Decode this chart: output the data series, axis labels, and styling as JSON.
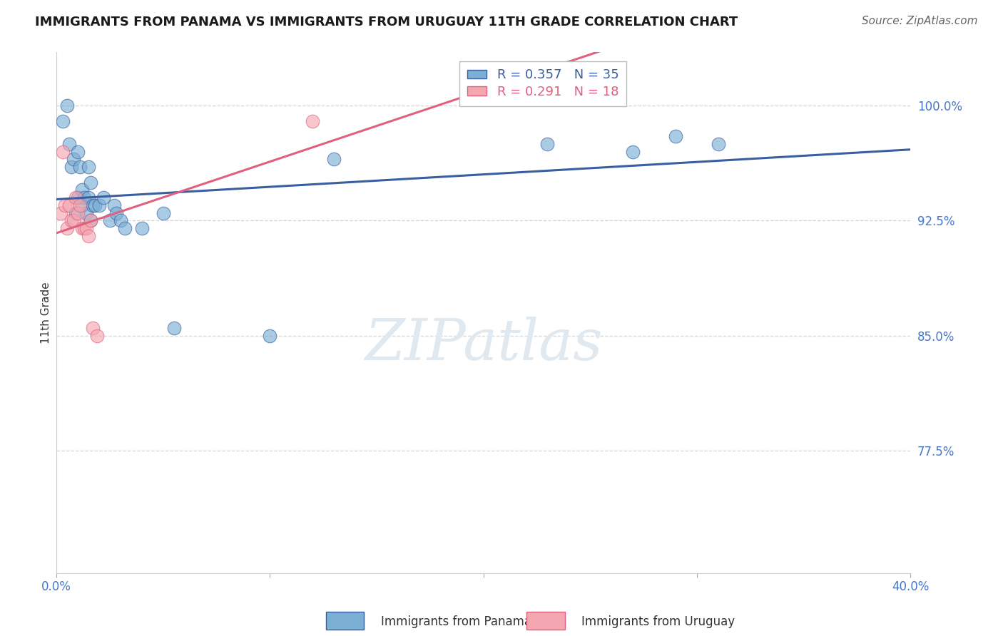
{
  "title": "IMMIGRANTS FROM PANAMA VS IMMIGRANTS FROM URUGUAY 11TH GRADE CORRELATION CHART",
  "source": "Source: ZipAtlas.com",
  "xlabel": "",
  "ylabel": "11th Grade",
  "xlim": [
    0.0,
    0.4
  ],
  "ylim": [
    0.695,
    1.035
  ],
  "xticks": [
    0.0,
    0.1,
    0.2,
    0.3,
    0.4
  ],
  "xtick_labels": [
    "0.0%",
    "",
    "",
    "",
    "40.0%"
  ],
  "ytick_positions": [
    0.775,
    0.85,
    0.925,
    1.0
  ],
  "ytick_labels": [
    "77.5%",
    "85.0%",
    "92.5%",
    "100.0%"
  ],
  "blue_R": 0.357,
  "blue_N": 35,
  "pink_R": 0.291,
  "pink_N": 18,
  "legend_blue": "Immigrants from Panama",
  "legend_pink": "Immigrants from Uruguay",
  "blue_color": "#7BAFD4",
  "pink_color": "#F4A7B0",
  "blue_line_color": "#3A5FA0",
  "pink_line_color": "#E06080",
  "blue_scatter_x": [
    0.003,
    0.005,
    0.006,
    0.007,
    0.008,
    0.009,
    0.01,
    0.01,
    0.011,
    0.012,
    0.012,
    0.013,
    0.014,
    0.015,
    0.015,
    0.016,
    0.016,
    0.017,
    0.018,
    0.02,
    0.022,
    0.025,
    0.027,
    0.028,
    0.03,
    0.032,
    0.04,
    0.05,
    0.055,
    0.1,
    0.13,
    0.23,
    0.27,
    0.29,
    0.31
  ],
  "blue_scatter_y": [
    0.99,
    1.0,
    0.975,
    0.96,
    0.965,
    0.93,
    0.97,
    0.94,
    0.96,
    0.945,
    0.935,
    0.94,
    0.93,
    0.94,
    0.96,
    0.925,
    0.95,
    0.935,
    0.935,
    0.935,
    0.94,
    0.925,
    0.935,
    0.93,
    0.925,
    0.92,
    0.92,
    0.93,
    0.855,
    0.85,
    0.965,
    0.975,
    0.97,
    0.98,
    0.975
  ],
  "pink_scatter_x": [
    0.002,
    0.003,
    0.004,
    0.005,
    0.006,
    0.007,
    0.008,
    0.009,
    0.01,
    0.011,
    0.012,
    0.013,
    0.014,
    0.015,
    0.016,
    0.017,
    0.019,
    0.12
  ],
  "pink_scatter_y": [
    0.93,
    0.97,
    0.935,
    0.92,
    0.935,
    0.925,
    0.925,
    0.94,
    0.93,
    0.935,
    0.92,
    0.92,
    0.92,
    0.915,
    0.925,
    0.855,
    0.85,
    0.99
  ],
  "watermark_text": "ZIPatlas",
  "background_color": "#FFFFFF",
  "grid_color": "#CCCCCC",
  "title_fontsize": 13,
  "tick_fontsize": 12,
  "source_fontsize": 11,
  "ylabel_fontsize": 11,
  "legend_fontsize": 13
}
